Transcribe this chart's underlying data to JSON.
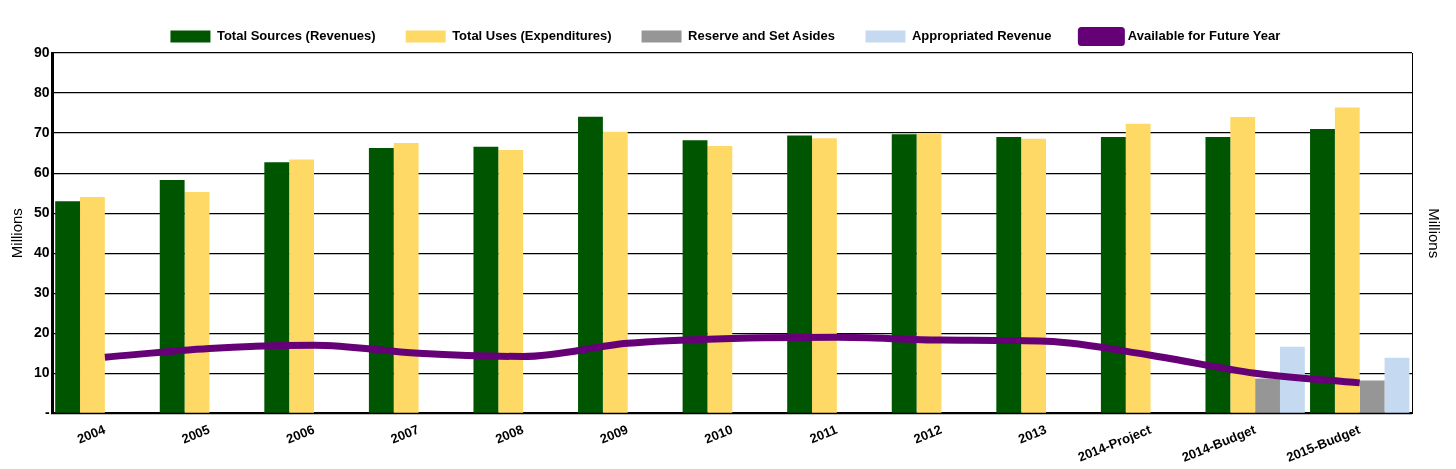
{
  "chart_data": {
    "type": "bar",
    "categories": [
      "2004",
      "2005",
      "2006",
      "2007",
      "2008",
      "2009",
      "2010",
      "2011",
      "2012",
      "2013",
      "2014-Project",
      "2014-Budget",
      "2015-Budget"
    ],
    "series": [
      {
        "name": "Total Sources (Revenues)",
        "color": "#005500",
        "values": [
          53,
          58.3,
          62.7,
          66.3,
          66.6,
          74.1,
          68.2,
          69.4,
          69.7,
          69,
          69,
          69,
          71
        ]
      },
      {
        "name": "Total Uses (Expenditures)",
        "color": "#ffd966",
        "values": [
          54,
          55.3,
          63.4,
          67.5,
          65.8,
          70.3,
          66.8,
          68.7,
          70,
          68.6,
          72.3,
          74,
          76.4
        ]
      },
      {
        "name": "Reserve and Set Asides",
        "color": "#969696",
        "values": [
          null,
          null,
          null,
          null,
          null,
          null,
          null,
          null,
          null,
          null,
          null,
          8.7,
          8.2
        ]
      },
      {
        "name": "Appropriated Revenue",
        "color": "#c5d9f1",
        "values": [
          null,
          null,
          null,
          null,
          null,
          null,
          null,
          null,
          null,
          null,
          null,
          16.6,
          13.9
        ]
      },
      {
        "name": "Available for Future Year",
        "color": "#660077",
        "type": "line",
        "values": [
          14,
          16.2,
          17,
          15,
          14.2,
          17.5,
          18.7,
          19,
          18.3,
          18,
          14.5,
          10,
          7.6
        ]
      }
    ],
    "ylabel": "Millions",
    "y2label": "Millions",
    "ylim": [
      0,
      90
    ],
    "yticks": [
      {
        "value": 0,
        "label": "-"
      },
      10,
      20,
      30,
      40,
      50,
      60,
      70,
      80,
      90
    ],
    "grid": "y",
    "legend": "top",
    "marker": "none"
  }
}
